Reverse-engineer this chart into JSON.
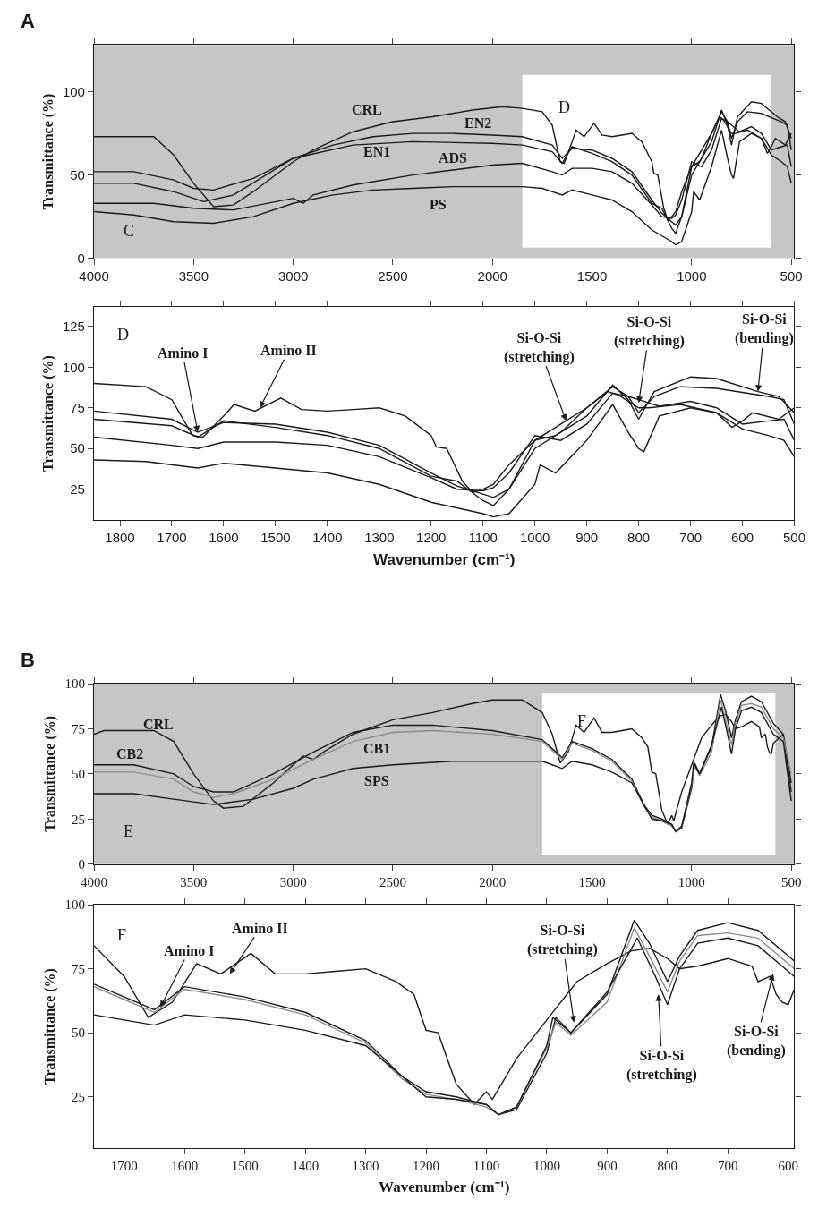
{
  "chart_data": [
    {
      "type": "line",
      "title": "A",
      "ylabel": "Transmittance (%)",
      "xlim": [
        4000,
        485
      ],
      "ylim": [
        0,
        128
      ],
      "xticks": [
        4000,
        3500,
        3000,
        2500,
        2000,
        1500,
        1000,
        500
      ],
      "yticks": [
        0,
        50,
        100
      ],
      "grid": false,
      "legend": false,
      "marker": "none",
      "line_style": "solid",
      "bands": [
        {
          "axis": "x",
          "from": 1850,
          "to": 600,
          "label": "D",
          "color": "#ffffff"
        }
      ],
      "annotations": [
        "C"
      ],
      "series": [
        {
          "name": "CRL",
          "color": "#1a1a1a",
          "x": [
            4000,
            3700,
            3600,
            3500,
            3400,
            3300,
            3200,
            3000,
            2900,
            2700,
            2500,
            2300,
            2100,
            1950,
            1850,
            1750,
            1700,
            1660,
            1640,
            1600,
            1580,
            1540,
            1490,
            1450,
            1400,
            1350,
            1300,
            1250,
            1200,
            1190,
            1170,
            1140,
            1120,
            1100,
            1080,
            1050,
            1000,
            950,
            900,
            860,
            840,
            800,
            780,
            720,
            650,
            620,
            600,
            580,
            530,
            500
          ],
          "values": [
            73,
            73,
            62,
            45,
            31,
            32,
            40,
            58,
            65,
            76,
            82,
            85,
            89,
            91,
            90,
            88,
            80,
            58,
            57,
            70,
            77,
            73,
            81,
            74,
            73,
            74,
            75,
            70,
            58,
            51,
            50,
            30,
            23,
            25,
            28,
            40,
            55,
            65,
            75,
            85,
            83,
            75,
            75,
            77,
            72,
            63,
            67,
            72,
            68,
            75
          ]
        },
        {
          "name": "EN2",
          "color": "#1a1a1a",
          "x": [
            4000,
            3800,
            3600,
            3500,
            3400,
            3200,
            3000,
            2800,
            2600,
            2400,
            2200,
            2000,
            1850,
            1700,
            1650,
            1600,
            1500,
            1400,
            1300,
            1200,
            1150,
            1100,
            1080,
            1050,
            1000,
            950,
            900,
            850,
            820,
            800,
            770,
            720,
            650,
            550,
            520,
            500
          ],
          "values": [
            52,
            52,
            47,
            42,
            41,
            48,
            60,
            68,
            73,
            75,
            75,
            74,
            73,
            68,
            60,
            66,
            65,
            60,
            52,
            35,
            27,
            22,
            20,
            25,
            50,
            60,
            75,
            88,
            82,
            72,
            82,
            88,
            87,
            82,
            80,
            65
          ]
        },
        {
          "name": "EN1",
          "color": "#1a1a1a",
          "x": [
            4000,
            3800,
            3600,
            3450,
            3300,
            3000,
            2700,
            2400,
            2000,
            1850,
            1700,
            1650,
            1600,
            1500,
            1400,
            1300,
            1200,
            1150,
            1100,
            1080,
            1050,
            1000,
            960,
            900,
            850,
            820,
            800,
            770,
            700,
            650,
            570,
            530,
            500
          ],
          "values": [
            45,
            45,
            40,
            34,
            38,
            60,
            68,
            70,
            69,
            68,
            64,
            57,
            67,
            63,
            58,
            50,
            33,
            30,
            18,
            15,
            25,
            55,
            58,
            70,
            89,
            80,
            68,
            85,
            94,
            93,
            85,
            82,
            72
          ]
        },
        {
          "name": "ADS",
          "color": "#1a1a1a",
          "x": [
            4000,
            3700,
            3500,
            3300,
            3000,
            2950,
            2900,
            2700,
            2400,
            2200,
            2000,
            1850,
            1700,
            1650,
            1600,
            1500,
            1400,
            1300,
            1200,
            1150,
            1100,
            1080,
            1050,
            1000,
            950,
            900,
            850,
            820,
            800,
            760,
            700,
            650,
            600,
            550,
            520,
            500
          ],
          "values": [
            33,
            33,
            30,
            29,
            36,
            33,
            38,
            44,
            50,
            53,
            56,
            57,
            52,
            50,
            54,
            54,
            52,
            45,
            32,
            25,
            24,
            26,
            35,
            58,
            55,
            65,
            84,
            82,
            80,
            76,
            79,
            75,
            65,
            67,
            68,
            55
          ]
        },
        {
          "name": "PS",
          "color": "#1a1a1a",
          "x": [
            4000,
            3800,
            3600,
            3400,
            3200,
            3000,
            2800,
            2600,
            2400,
            2200,
            2000,
            1850,
            1750,
            1650,
            1600,
            1500,
            1400,
            1300,
            1200,
            1100,
            1080,
            1050,
            1000,
            990,
            960,
            900,
            850,
            820,
            800,
            790,
            760,
            700,
            650,
            600,
            550,
            520,
            500
          ],
          "values": [
            28,
            26,
            22,
            21,
            25,
            33,
            38,
            41,
            42,
            43,
            43,
            43,
            42,
            38,
            41,
            38,
            35,
            28,
            17,
            10,
            8,
            10,
            28,
            40,
            35,
            55,
            77,
            60,
            50,
            48,
            70,
            75,
            72,
            62,
            58,
            55,
            45
          ]
        }
      ]
    },
    {
      "type": "line",
      "xlabel": "Wavenumber (cm⁻¹)",
      "ylabel": "Transmittance (%)",
      "xlim": [
        1850,
        500
      ],
      "ylim": [
        6,
        137
      ],
      "xticks": [
        1800,
        1700,
        1600,
        1500,
        1400,
        1300,
        1200,
        1100,
        1000,
        900,
        800,
        700,
        600,
        500
      ],
      "yticks": [
        25,
        50,
        75,
        100,
        125
      ],
      "grid": false,
      "legend": false,
      "marker": "none",
      "line_style": "solid",
      "annotations": [
        "D",
        {
          "text": "Amino I",
          "x": 1650,
          "y": 60
        },
        {
          "text": "Amino II",
          "x": 1530,
          "y": 75
        },
        {
          "text": "Si-O-Si\n(stretching)",
          "x": 940,
          "y": 67
        },
        {
          "text": "Si-O-Si\n(stretching)",
          "x": 800,
          "y": 78
        },
        {
          "text": "Si-O-Si\n(bending)",
          "x": 570,
          "y": 85
        }
      ],
      "series": [
        {
          "color": "#1a1a1a",
          "x": [
            1850,
            1750,
            1700,
            1660,
            1640,
            1600,
            1580,
            1540,
            1490,
            1450,
            1400,
            1350,
            1300,
            1250,
            1200,
            1190,
            1170,
            1140,
            1120,
            1100,
            1080,
            1050,
            1000,
            950,
            900,
            860,
            840,
            800,
            780,
            720,
            650,
            620,
            600,
            580,
            530,
            500
          ],
          "values": [
            90,
            88,
            80,
            58,
            57,
            70,
            77,
            73,
            81,
            74,
            73,
            74,
            75,
            70,
            58,
            51,
            50,
            30,
            23,
            25,
            28,
            40,
            55,
            65,
            75,
            85,
            83,
            75,
            75,
            77,
            72,
            63,
            67,
            72,
            68,
            75
          ]
        },
        {
          "color": "#1a1a1a",
          "x": [
            1850,
            1700,
            1650,
            1600,
            1500,
            1400,
            1300,
            1200,
            1150,
            1100,
            1080,
            1050,
            1000,
            950,
            900,
            850,
            820,
            800,
            770,
            720,
            650,
            550,
            520,
            500
          ],
          "values": [
            73,
            68,
            60,
            66,
            65,
            60,
            52,
            35,
            27,
            22,
            20,
            25,
            50,
            60,
            75,
            88,
            82,
            72,
            82,
            88,
            87,
            82,
            80,
            65
          ]
        },
        {
          "color": "#1a1a1a",
          "x": [
            1850,
            1700,
            1650,
            1600,
            1500,
            1400,
            1300,
            1200,
            1150,
            1100,
            1080,
            1050,
            1000,
            960,
            900,
            850,
            820,
            800,
            770,
            700,
            650,
            570,
            530,
            500
          ],
          "values": [
            68,
            64,
            57,
            67,
            63,
            58,
            50,
            33,
            30,
            18,
            15,
            25,
            55,
            58,
            70,
            89,
            80,
            68,
            85,
            94,
            93,
            85,
            82,
            72
          ]
        },
        {
          "color": "#1a1a1a",
          "x": [
            1850,
            1700,
            1650,
            1600,
            1500,
            1400,
            1300,
            1200,
            1150,
            1100,
            1080,
            1050,
            1000,
            950,
            900,
            850,
            820,
            800,
            760,
            700,
            650,
            600,
            550,
            520,
            500
          ],
          "values": [
            57,
            52,
            50,
            54,
            54,
            52,
            45,
            32,
            25,
            24,
            26,
            35,
            58,
            55,
            65,
            84,
            82,
            80,
            76,
            79,
            75,
            65,
            67,
            68,
            55
          ]
        },
        {
          "color": "#1a1a1a",
          "x": [
            1850,
            1750,
            1650,
            1600,
            1500,
            1400,
            1300,
            1200,
            1100,
            1080,
            1050,
            1000,
            990,
            960,
            900,
            850,
            820,
            800,
            790,
            760,
            700,
            650,
            600,
            550,
            520,
            500
          ],
          "values": [
            43,
            42,
            38,
            41,
            38,
            35,
            28,
            17,
            10,
            8,
            10,
            28,
            40,
            35,
            55,
            77,
            60,
            50,
            48,
            70,
            75,
            72,
            62,
            58,
            55,
            45
          ]
        }
      ]
    },
    {
      "type": "line",
      "title": "B",
      "ylabel": "Transmittance (%)",
      "xlim": [
        4000,
        485
      ],
      "ylim": [
        0,
        100
      ],
      "xticks": [
        4000,
        3500,
        3000,
        2500,
        2000,
        1500,
        1000,
        500
      ],
      "yticks": [
        0,
        25,
        50,
        75,
        100
      ],
      "grid": false,
      "legend": false,
      "marker": "none",
      "line_style": "solid",
      "bands": [
        {
          "axis": "x",
          "from": 1750,
          "to": 580,
          "label": "F",
          "color": "#ffffff"
        }
      ],
      "annotations": [
        "E"
      ],
      "series": [
        {
          "name": "CRL",
          "color": "#1a1a1a",
          "x": [
            4000,
            3950,
            3700,
            3600,
            3500,
            3400,
            3350,
            3250,
            3100,
            3000,
            2950,
            2900,
            2850,
            2700,
            2500,
            2300,
            2100,
            2000,
            1850,
            1750,
            1700,
            1660,
            1620,
            1580,
            1540,
            1490,
            1450,
            1400,
            1350,
            1300,
            1250,
            1220,
            1200,
            1180,
            1150,
            1120,
            1100,
            1090,
            1050,
            1000,
            950,
            900,
            860,
            830,
            800,
            780,
            750,
            700,
            660,
            650,
            630,
            620,
            610,
            600,
            590,
            540,
            500
          ],
          "values": [
            72,
            74,
            74,
            68,
            50,
            35,
            31,
            32,
            45,
            55,
            60,
            58,
            62,
            72,
            80,
            84,
            89,
            91,
            91,
            84,
            72,
            56,
            62,
            77,
            73,
            81,
            73,
            73,
            74,
            75,
            70,
            65,
            51,
            50,
            30,
            22,
            27,
            24,
            40,
            55,
            70,
            77,
            82,
            83,
            79,
            75,
            76,
            79,
            76,
            70,
            72,
            65,
            62,
            61,
            67,
            72,
            40
          ]
        },
        {
          "name": "CB2",
          "color": "#1a1a1a",
          "x": [
            4000,
            3800,
            3600,
            3500,
            3400,
            3300,
            3100,
            2900,
            2700,
            2500,
            2300,
            2000,
            1750,
            1700,
            1650,
            1600,
            1500,
            1400,
            1300,
            1240,
            1200,
            1150,
            1100,
            1080,
            1050,
            1000,
            985,
            960,
            900,
            855,
            830,
            800,
            780,
            750,
            700,
            650,
            590,
            540,
            500
          ],
          "values": [
            55,
            55,
            50,
            43,
            40,
            40,
            50,
            62,
            73,
            77,
            77,
            74,
            69,
            64,
            59,
            68,
            64,
            58,
            47,
            33,
            27,
            25,
            22,
            18,
            20,
            42,
            56,
            50,
            65,
            94,
            85,
            70,
            80,
            90,
            93,
            90,
            78,
            72,
            45
          ]
        },
        {
          "name": "CB1",
          "color": "#8c8c8c",
          "x": [
            4000,
            3800,
            3600,
            3500,
            3400,
            3300,
            3100,
            2900,
            2700,
            2500,
            2300,
            2000,
            1750,
            1700,
            1650,
            1600,
            1500,
            1400,
            1300,
            1240,
            1200,
            1150,
            1100,
            1080,
            1050,
            1000,
            985,
            960,
            900,
            855,
            830,
            800,
            780,
            750,
            700,
            650,
            590,
            540,
            500
          ],
          "values": [
            51,
            51,
            47,
            40,
            37,
            39,
            47,
            58,
            68,
            73,
            74,
            72,
            68,
            63,
            58,
            67,
            63,
            57,
            46,
            32,
            26,
            24,
            21,
            18,
            21,
            44,
            54,
            49,
            62,
            91,
            80,
            66,
            78,
            88,
            89,
            87,
            75,
            70,
            50
          ]
        },
        {
          "name": "SPS",
          "color": "#1a1a1a",
          "x": [
            4000,
            3800,
            3600,
            3400,
            3200,
            3000,
            2900,
            2800,
            2700,
            2500,
            2200,
            2000,
            1750,
            1700,
            1650,
            1600,
            1500,
            1400,
            1300,
            1240,
            1200,
            1150,
            1100,
            1080,
            1050,
            1000,
            990,
            960,
            900,
            850,
            820,
            800,
            780,
            750,
            700,
            650,
            590,
            540,
            500
          ],
          "values": [
            39,
            39,
            36,
            33,
            36,
            42,
            47,
            50,
            53,
            55,
            57,
            57,
            57,
            55,
            53,
            57,
            55,
            51,
            45,
            33,
            25,
            24,
            22,
            18,
            21,
            45,
            56,
            50,
            66,
            87,
            72,
            61,
            75,
            85,
            87,
            84,
            72,
            68,
            35
          ]
        }
      ]
    },
    {
      "type": "line",
      "xlabel": "Wavenumber (cm⁻¹)",
      "ylabel": "Transmittance (%)",
      "xlim": [
        1750,
        590
      ],
      "ylim": [
        5,
        100
      ],
      "xticks": [
        1700,
        1600,
        1500,
        1400,
        1300,
        1200,
        1100,
        1000,
        900,
        800,
        700,
        600
      ],
      "yticks": [
        25,
        50,
        75,
        100
      ],
      "grid": false,
      "legend": false,
      "marker": "none",
      "line_style": "solid",
      "annotations": [
        "F",
        {
          "text": "Amino I",
          "x": 1640,
          "y": 60
        },
        {
          "text": "Amino II",
          "x": 1525,
          "y": 73
        },
        {
          "text": "Si-O-Si\n(stretching)",
          "x": 955,
          "y": 54
        },
        {
          "text": "Si-O-Si\n(stretching)",
          "x": 815,
          "y": 65
        },
        {
          "text": "Si-O-Si\n(bending)",
          "x": 625,
          "y": 73
        }
      ],
      "series": [
        {
          "color": "#1a1a1a",
          "x": [
            1750,
            1700,
            1660,
            1620,
            1580,
            1540,
            1490,
            1450,
            1400,
            1350,
            1300,
            1250,
            1220,
            1200,
            1180,
            1150,
            1120,
            1100,
            1090,
            1050,
            1000,
            950,
            900,
            860,
            830,
            800,
            780,
            750,
            700,
            660,
            650,
            630,
            620,
            610,
            600,
            590
          ],
          "values": [
            84,
            72,
            56,
            62,
            77,
            73,
            81,
            73,
            73,
            74,
            75,
            70,
            65,
            51,
            50,
            30,
            22,
            27,
            24,
            40,
            55,
            70,
            77,
            82,
            83,
            79,
            75,
            76,
            79,
            76,
            70,
            72,
            65,
            62,
            61,
            67
          ]
        },
        {
          "color": "#1a1a1a",
          "x": [
            1750,
            1700,
            1650,
            1600,
            1500,
            1400,
            1300,
            1240,
            1200,
            1150,
            1100,
            1080,
            1050,
            1000,
            985,
            960,
            900,
            855,
            830,
            800,
            780,
            750,
            700,
            650,
            590
          ],
          "values": [
            69,
            64,
            59,
            68,
            64,
            58,
            47,
            33,
            27,
            25,
            22,
            18,
            20,
            42,
            56,
            50,
            65,
            94,
            85,
            70,
            80,
            90,
            93,
            90,
            78
          ]
        },
        {
          "color": "#8c8c8c",
          "x": [
            1750,
            1700,
            1650,
            1600,
            1500,
            1400,
            1300,
            1240,
            1200,
            1150,
            1100,
            1080,
            1050,
            1000,
            985,
            960,
            900,
            855,
            830,
            800,
            780,
            750,
            700,
            650,
            590
          ],
          "values": [
            68,
            63,
            58,
            67,
            63,
            57,
            46,
            32,
            26,
            24,
            21,
            18,
            21,
            44,
            54,
            49,
            62,
            91,
            80,
            66,
            78,
            88,
            89,
            87,
            75
          ]
        },
        {
          "color": "#1a1a1a",
          "x": [
            1750,
            1700,
            1650,
            1600,
            1500,
            1400,
            1300,
            1240,
            1200,
            1150,
            1100,
            1080,
            1050,
            1000,
            990,
            960,
            900,
            850,
            820,
            800,
            780,
            750,
            700,
            650,
            590
          ],
          "values": [
            57,
            55,
            53,
            57,
            55,
            51,
            45,
            33,
            25,
            24,
            22,
            18,
            21,
            45,
            56,
            50,
            66,
            87,
            72,
            61,
            75,
            85,
            87,
            84,
            72
          ]
        }
      ]
    }
  ]
}
